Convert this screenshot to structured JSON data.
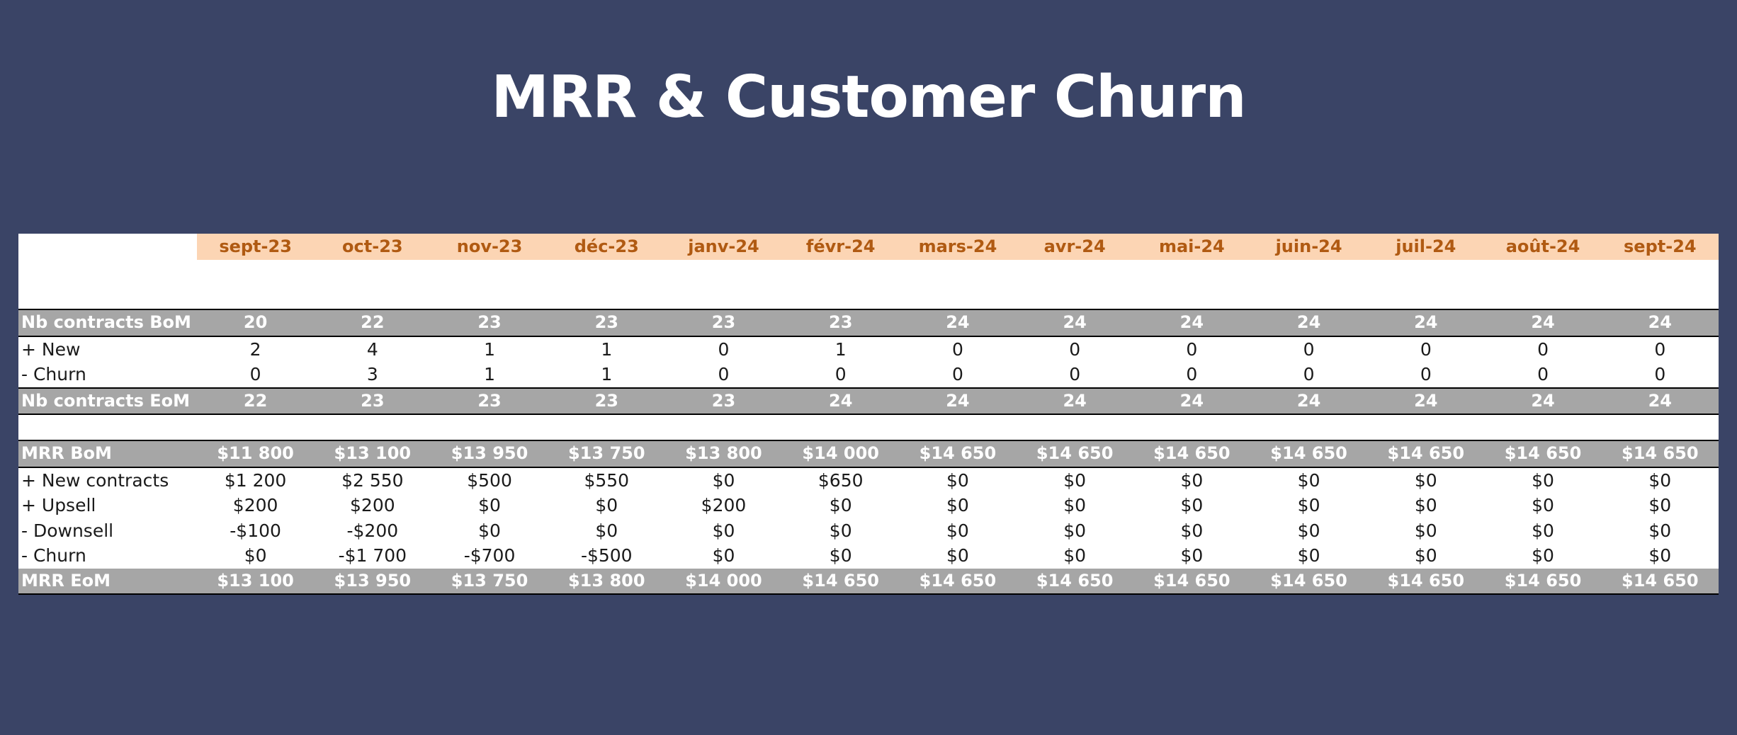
{
  "title": "MRR & Customer Churn",
  "colors": {
    "background": "#3a4466",
    "month_header_bg": "#fcd5b4",
    "month_header_text": "#b05a12",
    "total_row_bg": "#a6a6a6"
  },
  "table": {
    "months": [
      "sept-23",
      "oct-23",
      "nov-23",
      "déc-23",
      "janv-24",
      "févr-24",
      "mars-24",
      "avr-24",
      "mai-24",
      "juin-24",
      "juil-24",
      "août-24",
      "sept-24"
    ],
    "contracts": [
      {
        "label": "Nb contracts BoM",
        "style": "total-top",
        "values": [
          "20",
          "22",
          "23",
          "23",
          "23",
          "23",
          "24",
          "24",
          "24",
          "24",
          "24",
          "24",
          "24"
        ]
      },
      {
        "label": "+ New",
        "style": "normal",
        "values": [
          "2",
          "4",
          "1",
          "1",
          "0",
          "1",
          "0",
          "0",
          "0",
          "0",
          "0",
          "0",
          "0"
        ]
      },
      {
        "label": "- Churn",
        "style": "normal",
        "values": [
          "0",
          "3",
          "1",
          "1",
          "0",
          "0",
          "0",
          "0",
          "0",
          "0",
          "0",
          "0",
          "0"
        ]
      },
      {
        "label": "Nb contracts EoM",
        "style": "total-both",
        "values": [
          "22",
          "23",
          "23",
          "23",
          "23",
          "24",
          "24",
          "24",
          "24",
          "24",
          "24",
          "24",
          "24"
        ]
      }
    ],
    "mrr": [
      {
        "label": "MRR BoM",
        "style": "total-both",
        "values": [
          "$11 800",
          "$13 100",
          "$13 950",
          "$13 750",
          "$13 800",
          "$14 000",
          "$14 650",
          "$14 650",
          "$14 650",
          "$14 650",
          "$14 650",
          "$14 650",
          "$14 650"
        ]
      },
      {
        "label": "+ New contracts",
        "style": "normal",
        "values": [
          "$1 200",
          "$2 550",
          "$500",
          "$550",
          "$0",
          "$650",
          "$0",
          "$0",
          "$0",
          "$0",
          "$0",
          "$0",
          "$0"
        ]
      },
      {
        "label": "+ Upsell",
        "style": "normal",
        "values": [
          "$200",
          "$200",
          "$0",
          "$0",
          "$200",
          "$0",
          "$0",
          "$0",
          "$0",
          "$0",
          "$0",
          "$0",
          "$0"
        ]
      },
      {
        "label": "- Downsell",
        "style": "normal",
        "values": [
          "-$100",
          "-$200",
          "$0",
          "$0",
          "$0",
          "$0",
          "$0",
          "$0",
          "$0",
          "$0",
          "$0",
          "$0",
          "$0"
        ]
      },
      {
        "label": "- Churn",
        "style": "normal",
        "values": [
          "$0",
          "-$1 700",
          "-$700",
          "-$500",
          "$0",
          "$0",
          "$0",
          "$0",
          "$0",
          "$0",
          "$0",
          "$0",
          "$0"
        ]
      },
      {
        "label": "MRR EoM",
        "style": "total-bot",
        "values": [
          "$13 100",
          "$13 950",
          "$13 750",
          "$13 800",
          "$14 000",
          "$14 650",
          "$14 650",
          "$14 650",
          "$14 650",
          "$14 650",
          "$14 650",
          "$14 650",
          "$14 650"
        ]
      }
    ]
  }
}
